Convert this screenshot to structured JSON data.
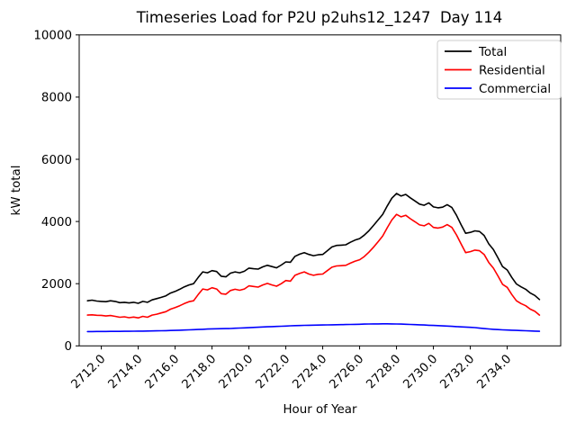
{
  "figure": {
    "title": "Timeseries Load for P2U p2uhs12_1247  Day 114"
  },
  "chart_data": {
    "type": "line",
    "title": "Timeseries Load for P2U p2uhs12_1247  Day 114",
    "xlabel": "Hour of Year",
    "ylabel": "kW total",
    "grid": false,
    "legend_position": "upper right",
    "xlim": [
      2710.8,
      2736.9
    ],
    "ylim": [
      0,
      10000
    ],
    "xticks": [
      2712,
      2714,
      2716,
      2718,
      2720,
      2722,
      2724,
      2726,
      2728,
      2730,
      2732,
      2734
    ],
    "xtick_labels": [
      "2712.0",
      "2714.0",
      "2716.0",
      "2718.0",
      "2720.0",
      "2722.0",
      "2724.0",
      "2726.0",
      "2728.0",
      "2730.0",
      "2732.0",
      "2734.0"
    ],
    "yticks": [
      0,
      2000,
      4000,
      6000,
      8000,
      10000
    ],
    "ytick_labels": [
      "0",
      "2000",
      "4000",
      "6000",
      "8000",
      "10000"
    ],
    "x": [
      2711.25,
      2711.5,
      2711.75,
      2712.0,
      2712.25,
      2712.5,
      2712.75,
      2713.0,
      2713.25,
      2713.5,
      2713.75,
      2714.0,
      2714.25,
      2714.5,
      2714.75,
      2715.0,
      2715.25,
      2715.5,
      2715.75,
      2716.0,
      2716.25,
      2716.5,
      2716.75,
      2717.0,
      2717.25,
      2717.5,
      2717.75,
      2718.0,
      2718.25,
      2718.5,
      2718.75,
      2719.0,
      2719.25,
      2719.5,
      2719.75,
      2720.0,
      2720.25,
      2720.5,
      2720.75,
      2721.0,
      2721.25,
      2721.5,
      2721.75,
      2722.0,
      2722.25,
      2722.5,
      2722.75,
      2723.0,
      2723.25,
      2723.5,
      2723.75,
      2724.0,
      2724.25,
      2724.5,
      2724.75,
      2725.0,
      2725.25,
      2725.5,
      2725.75,
      2726.0,
      2726.25,
      2726.5,
      2726.75,
      2727.0,
      2727.25,
      2727.5,
      2727.75,
      2728.0,
      2728.25,
      2728.5,
      2728.75,
      2729.0,
      2729.25,
      2729.5,
      2729.75,
      2730.0,
      2730.25,
      2730.5,
      2730.75,
      2731.0,
      2731.25,
      2731.5,
      2731.75,
      2732.0,
      2732.25,
      2732.5,
      2732.75,
      2733.0,
      2733.25,
      2733.5,
      2733.75,
      2734.0,
      2734.25,
      2734.5,
      2734.75,
      2735.0,
      2735.25,
      2735.5,
      2735.75
    ],
    "series": [
      {
        "name": "Total",
        "color": "#000000",
        "values": [
          1450,
          1470,
          1440,
          1430,
          1420,
          1450,
          1430,
          1390,
          1400,
          1380,
          1400,
          1370,
          1430,
          1400,
          1480,
          1520,
          1560,
          1610,
          1700,
          1750,
          1820,
          1900,
          1960,
          2000,
          2200,
          2380,
          2350,
          2420,
          2390,
          2240,
          2220,
          2340,
          2380,
          2350,
          2400,
          2500,
          2480,
          2470,
          2540,
          2590,
          2550,
          2510,
          2600,
          2700,
          2690,
          2880,
          2950,
          3000,
          2940,
          2900,
          2930,
          2940,
          3060,
          3180,
          3230,
          3240,
          3250,
          3330,
          3400,
          3450,
          3560,
          3700,
          3870,
          4050,
          4230,
          4500,
          4750,
          4900,
          4820,
          4870,
          4760,
          4660,
          4560,
          4520,
          4600,
          4470,
          4440,
          4460,
          4540,
          4450,
          4200,
          3900,
          3620,
          3650,
          3700,
          3680,
          3550,
          3280,
          3100,
          2830,
          2550,
          2440,
          2200,
          1990,
          1900,
          1820,
          1700,
          1620,
          1490
        ]
      },
      {
        "name": "Residential",
        "color": "#ff0000",
        "values": [
          990,
          1000,
          985,
          980,
          960,
          975,
          950,
          920,
          935,
          905,
          925,
          900,
          950,
          920,
          990,
          1020,
          1060,
          1100,
          1180,
          1230,
          1290,
          1360,
          1420,
          1450,
          1650,
          1830,
          1800,
          1870,
          1830,
          1680,
          1660,
          1780,
          1820,
          1790,
          1830,
          1930,
          1910,
          1890,
          1960,
          2010,
          1960,
          1920,
          2000,
          2100,
          2080,
          2270,
          2330,
          2380,
          2310,
          2270,
          2300,
          2310,
          2420,
          2530,
          2570,
          2580,
          2590,
          2660,
          2720,
          2770,
          2870,
          3010,
          3170,
          3350,
          3530,
          3800,
          4050,
          4230,
          4150,
          4200,
          4090,
          3990,
          3890,
          3860,
          3940,
          3810,
          3790,
          3820,
          3900,
          3810,
          3570,
          3280,
          3000,
          3030,
          3080,
          3060,
          2940,
          2680,
          2500,
          2250,
          1980,
          1880,
          1650,
          1450,
          1360,
          1290,
          1180,
          1110,
          990
        ]
      },
      {
        "name": "Commercial",
        "color": "#0000ff",
        "values": [
          460,
          461,
          462,
          463,
          464,
          465,
          466,
          467,
          468,
          470,
          472,
          474,
          476,
          478,
          481,
          484,
          487,
          490,
          494,
          498,
          503,
          508,
          514,
          520,
          527,
          534,
          540,
          547,
          551,
          553,
          556,
          560,
          566,
          572,
          579,
          586,
          593,
          600,
          607,
          614,
          620,
          626,
          632,
          638,
          644,
          650,
          655,
          659,
          663,
          666,
          669,
          672,
          675,
          678,
          681,
          684,
          687,
          690,
          693,
          696,
          699,
          702,
          705,
          707,
          708,
          708,
          706,
          703,
          699,
          694,
          689,
          683,
          677,
          671,
          664,
          657,
          650,
          643,
          636,
          628,
          620,
          612,
          604,
          596,
          588,
          570,
          556,
          543,
          533,
          524,
          516,
          509,
          503,
          497,
          492,
          487,
          481,
          474,
          468
        ]
      }
    ]
  }
}
